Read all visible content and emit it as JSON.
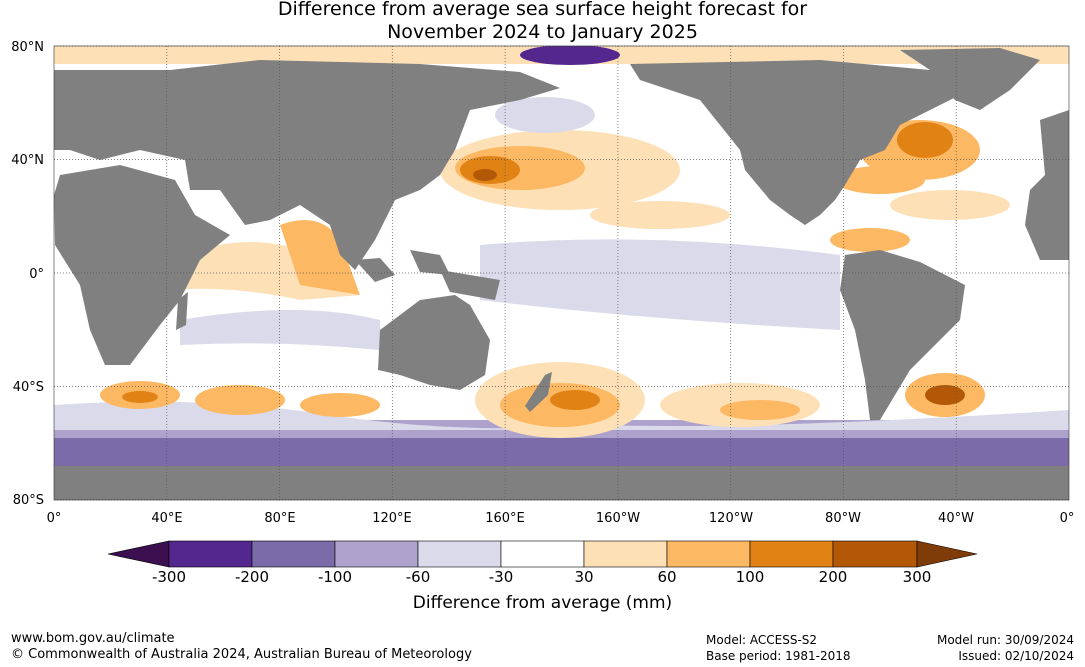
{
  "title_line1": "Difference from average sea surface height forecast for",
  "title_line2": "November 2024 to January 2025",
  "lat_labels": [
    "80°N",
    "40°N",
    "0°",
    "40°S",
    "80°S"
  ],
  "lon_labels": [
    "0°",
    "40°E",
    "80°E",
    "120°E",
    "160°E",
    "160°W",
    "120°W",
    "80°W",
    "40°W",
    "0°"
  ],
  "colorbar": {
    "title": "Difference from average (mm)",
    "tick_labels": [
      "-300",
      "-200",
      "-100",
      "-60",
      "-30",
      "30",
      "60",
      "100",
      "200",
      "300"
    ],
    "colors": [
      "#3b0f50",
      "#54278f",
      "#7b6ba8",
      "#aca2cc",
      "#dadaeb",
      "#ffffff",
      "#fee0b6",
      "#fdb863",
      "#e08214",
      "#b35806",
      "#7f3b08"
    ]
  },
  "colors": {
    "land": "#808080",
    "ocean": "#ffffff"
  },
  "footer": {
    "website": "www.bom.gov.au/climate",
    "copyright": "© Commonwealth of Australia 2024, Australian Bureau of Meteorology",
    "model": "Model: ACCESS-S2",
    "base_period": "Base period: 1981-2018",
    "model_run": "Model run: 30/09/2024",
    "issued": "Issued: 02/10/2024"
  }
}
